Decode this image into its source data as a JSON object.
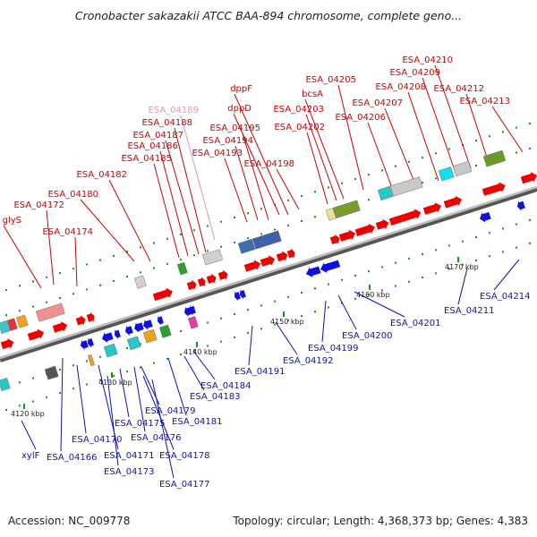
{
  "title": "Cronobacter sakazakii ATCC BAA-894 chromosome, complete geno...",
  "footer": {
    "accession": "Accession: NC_009778",
    "summary": "Topology: circular; Length: 4,368,373 bp; Genes: 4,383"
  },
  "colors": {
    "forward_label": "#cc0000",
    "reverse_label": "#1010c0",
    "pink_label": "#e890c0",
    "forward_gene": "#ee0000",
    "reverse_gene": "#1010dd",
    "backbone": "#8a8a8a",
    "tick": "#119911"
  },
  "ticks": [
    "4120 kbp",
    "4130 kbp",
    "4140 kbp",
    "4150 kbp",
    "4160 kbp",
    "4170 kbp"
  ],
  "forward_labels": [
    "ESA_04172",
    "glyS",
    "ESA_04174",
    "ESA_04180",
    "ESA_04182",
    "ESA_04185",
    "ESA_04186",
    "ESA_04187",
    "ESA_04188",
    "ESA_04189",
    "ESA_04193",
    "ESA_04194",
    "ESA_04195",
    "dppD",
    "dppF",
    "ESA_04198",
    "ESA_04202",
    "ESA_04203",
    "bcsA",
    "ESA_04205",
    "ESA_04206",
    "ESA_04207",
    "ESA_04208",
    "ESA_04209",
    "ESA_04210",
    "ESA_04212",
    "ESA_04213"
  ],
  "reverse_labels": [
    "xylF",
    "ESA_04166",
    "ESA_04170",
    "ESA_04171",
    "ESA_04173",
    "ESA_04175",
    "ESA_04176",
    "ESA_04177",
    "ESA_04178",
    "ESA_04179",
    "ESA_04181",
    "ESA_04183",
    "ESA_04184",
    "ESA_04191",
    "ESA_04192",
    "ESA_04199",
    "ESA_04200",
    "ESA_04201",
    "ESA_04211",
    "ESA_04214"
  ]
}
